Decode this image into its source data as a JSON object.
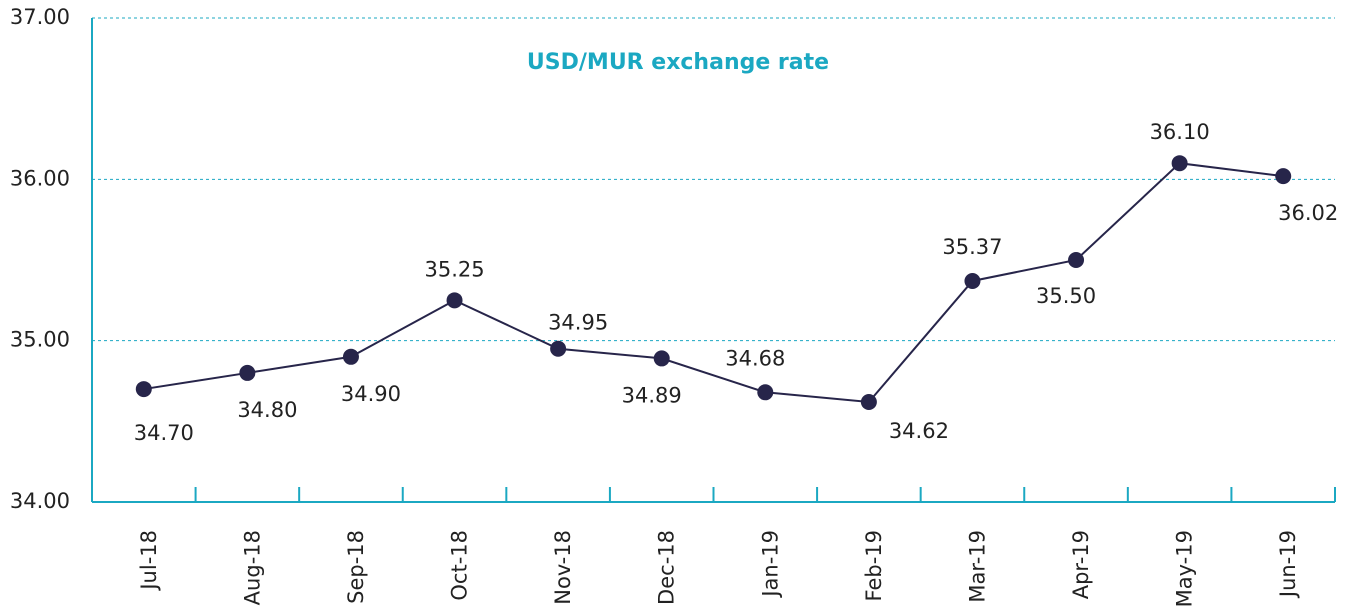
{
  "chart_data": {
    "type": "line",
    "title": "USD/MUR exchange rate",
    "categories": [
      "Jul-18",
      "Aug-18",
      "Sep-18",
      "Oct-18",
      "Nov-18",
      "Dec-18",
      "Jan-19",
      "Feb-19",
      "Mar-19",
      "Apr-19",
      "May-19",
      "Jun-19"
    ],
    "series": [
      {
        "name": "USD/MUR",
        "color": "#27254a",
        "values": [
          34.7,
          34.8,
          34.9,
          35.25,
          34.95,
          34.89,
          34.68,
          34.62,
          35.37,
          35.5,
          36.1,
          36.02
        ],
        "value_labels": [
          "34.70",
          "34.80",
          "34.90",
          "35.25",
          "34.95",
          "34.89",
          "34.68",
          "34.62",
          "35.37",
          "35.50",
          "36.10",
          "36.02"
        ]
      }
    ],
    "ylim": [
      34,
      37
    ],
    "yticks": [
      {
        "value": 34,
        "label": "34.00"
      },
      {
        "value": 35,
        "label": "35.00"
      },
      {
        "value": 36,
        "label": "36.00"
      },
      {
        "value": 37,
        "label": "37.00"
      }
    ],
    "grid": true,
    "axis_color": "#1ba8c2"
  }
}
